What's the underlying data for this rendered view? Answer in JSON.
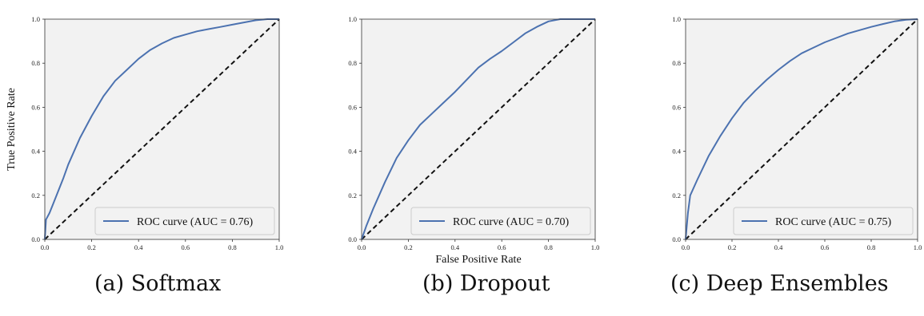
{
  "captions": [
    "(a) Softmax",
    "(b) Dropout",
    "(c) Deep Ensembles"
  ],
  "colors": {
    "roc": "#4c72b0",
    "diagonal": "#111111",
    "plot_bg": "#f2f2f2"
  },
  "chart_data": [
    {
      "type": "line",
      "title": "",
      "xlabel": "",
      "ylabel": "True Positive Rate",
      "xlim": [
        0,
        1
      ],
      "ylim": [
        0,
        1
      ],
      "xticks": [
        "0.0",
        "0.2",
        "0.4",
        "0.6",
        "0.8",
        "1.0"
      ],
      "yticks": [
        "0.0",
        "0.2",
        "0.4",
        "0.6",
        "0.8",
        "1.0"
      ],
      "legend_position": "bottom-right",
      "series": [
        {
          "name": "ROC curve (AUC = 0.76)",
          "x": [
            0,
            0.005,
            0.02,
            0.05,
            0.08,
            0.1,
            0.15,
            0.2,
            0.25,
            0.3,
            0.35,
            0.4,
            0.45,
            0.5,
            0.55,
            0.6,
            0.65,
            0.7,
            0.75,
            0.8,
            0.85,
            0.9,
            0.95,
            1.0
          ],
          "y": [
            0,
            0.09,
            0.12,
            0.2,
            0.28,
            0.34,
            0.46,
            0.56,
            0.65,
            0.72,
            0.77,
            0.82,
            0.86,
            0.89,
            0.915,
            0.93,
            0.945,
            0.955,
            0.965,
            0.975,
            0.985,
            0.995,
            1.0,
            1.0
          ]
        }
      ],
      "reference_line": {
        "x": [
          0,
          1
        ],
        "y": [
          0,
          1
        ]
      }
    },
    {
      "type": "line",
      "title": "",
      "xlabel": "False Positive Rate",
      "ylabel": "",
      "xlim": [
        0,
        1
      ],
      "ylim": [
        0,
        1
      ],
      "xticks": [
        "0.0",
        "0.2",
        "0.4",
        "0.6",
        "0.8",
        "1.0"
      ],
      "yticks": [
        "0.0",
        "0.2",
        "0.4",
        "0.6",
        "0.8",
        "1.0"
      ],
      "legend_position": "bottom-right",
      "series": [
        {
          "name": "ROC curve (AUC = 0.70)",
          "x": [
            0,
            0.02,
            0.05,
            0.1,
            0.15,
            0.2,
            0.25,
            0.3,
            0.35,
            0.4,
            0.45,
            0.5,
            0.55,
            0.6,
            0.65,
            0.7,
            0.75,
            0.8,
            0.85,
            0.9,
            0.95,
            1.0
          ],
          "y": [
            0,
            0.06,
            0.14,
            0.26,
            0.37,
            0.45,
            0.52,
            0.57,
            0.62,
            0.67,
            0.725,
            0.78,
            0.82,
            0.855,
            0.895,
            0.935,
            0.965,
            0.99,
            1.0,
            1.0,
            1.0,
            1.0
          ]
        }
      ],
      "reference_line": {
        "x": [
          0,
          1
        ],
        "y": [
          0,
          1
        ]
      }
    },
    {
      "type": "line",
      "title": "",
      "xlabel": "",
      "ylabel": "",
      "xlim": [
        0,
        1
      ],
      "ylim": [
        0,
        1
      ],
      "xticks": [
        "0.0",
        "0.2",
        "0.4",
        "0.6",
        "0.8",
        "1.0"
      ],
      "yticks": [
        "0.0",
        "0.2",
        "0.4",
        "0.6",
        "0.8",
        "1.0"
      ],
      "legend_position": "bottom-right",
      "series": [
        {
          "name": "ROC curve (AUC = 0.75)",
          "x": [
            0,
            0.01,
            0.02,
            0.05,
            0.1,
            0.15,
            0.2,
            0.25,
            0.3,
            0.35,
            0.4,
            0.45,
            0.5,
            0.55,
            0.6,
            0.65,
            0.7,
            0.75,
            0.8,
            0.85,
            0.9,
            0.95,
            1.0
          ],
          "y": [
            0,
            0.12,
            0.2,
            0.27,
            0.38,
            0.47,
            0.55,
            0.62,
            0.675,
            0.725,
            0.77,
            0.81,
            0.845,
            0.87,
            0.895,
            0.915,
            0.935,
            0.95,
            0.965,
            0.978,
            0.99,
            0.997,
            1.0
          ]
        }
      ],
      "reference_line": {
        "x": [
          0,
          1
        ],
        "y": [
          0,
          1
        ]
      }
    }
  ]
}
